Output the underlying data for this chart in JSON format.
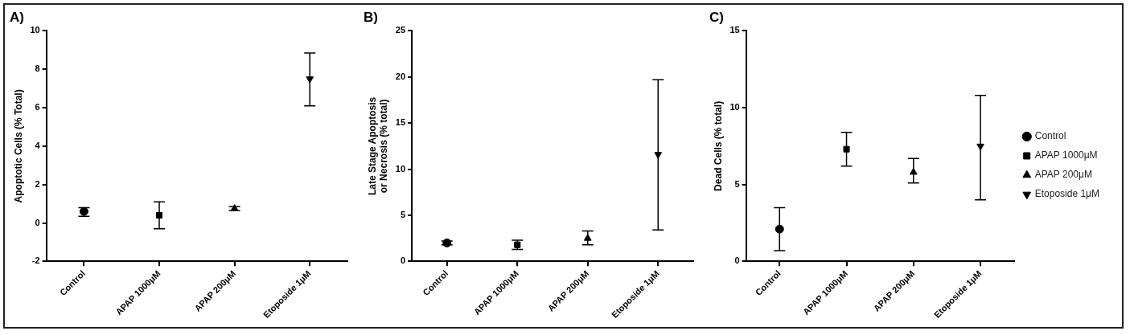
{
  "chart_data": [
    {
      "type": "scatter",
      "title": "A)",
      "ylabel": "Apoptotic Cells (% Total)",
      "categories": [
        "Control",
        "APAP 1000μM",
        "APAP 200μM",
        "Etoposide 1μM"
      ],
      "ylim": [
        -2,
        10
      ],
      "yticks": [
        -2,
        0,
        2,
        4,
        6,
        8,
        10
      ],
      "grid": false,
      "legend": false,
      "series": [
        {
          "color": "#000000",
          "marker": "circle",
          "values": [
            0.6,
            null,
            null,
            null
          ],
          "errors": [
            [
              0.35,
              0.8
            ],
            null,
            null,
            null
          ]
        },
        {
          "color": "#000000",
          "marker": "square",
          "values": [
            null,
            0.4,
            null,
            null
          ],
          "errors": [
            null,
            [
              -0.3,
              1.1
            ],
            null,
            null
          ]
        },
        {
          "color": "#000000",
          "marker": "triangle",
          "values": [
            null,
            null,
            0.75,
            null
          ],
          "errors": [
            null,
            null,
            [
              0.65,
              0.85
            ],
            null
          ]
        },
        {
          "color": "#000000",
          "marker": "triangle-down",
          "values": [
            null,
            null,
            null,
            7.5
          ],
          "errors": [
            null,
            null,
            null,
            [
              6.1,
              8.85
            ]
          ]
        }
      ]
    },
    {
      "type": "scatter",
      "title": "B)",
      "ylabel": "Late Stage Apoptosis\nor Necrosis (% total)",
      "categories": [
        "Control",
        "APAP 1000μM",
        "APAP 200μM",
        "Etoposide 1μM"
      ],
      "ylim": [
        0,
        25
      ],
      "yticks": [
        0,
        5,
        10,
        15,
        20,
        25
      ],
      "grid": false,
      "legend": false,
      "series": [
        {
          "color": "#000000",
          "marker": "circle",
          "values": [
            2.0,
            null,
            null,
            null
          ],
          "errors": [
            [
              1.8,
              2.2
            ],
            null,
            null,
            null
          ]
        },
        {
          "color": "#000000",
          "marker": "square",
          "values": [
            null,
            1.8,
            null,
            null
          ],
          "errors": [
            null,
            [
              1.3,
              2.3
            ],
            null,
            null
          ]
        },
        {
          "color": "#000000",
          "marker": "triangle",
          "values": [
            null,
            null,
            2.5,
            null
          ],
          "errors": [
            null,
            null,
            [
              1.8,
              3.3
            ],
            null
          ]
        },
        {
          "color": "#000000",
          "marker": "triangle-down",
          "values": [
            null,
            null,
            null,
            11.6
          ],
          "errors": [
            null,
            null,
            null,
            [
              3.4,
              19.7
            ]
          ]
        }
      ]
    },
    {
      "type": "scatter",
      "title": "C)",
      "ylabel": "Dead Cells (% total)",
      "categories": [
        "Control",
        "APAP 1000μM",
        "APAP 200μM",
        "Etoposide 1μM"
      ],
      "ylim": [
        0,
        15
      ],
      "yticks": [
        0,
        5,
        10,
        15
      ],
      "grid": false,
      "legend": "right",
      "series": [
        {
          "name": "Control",
          "color": "#000000",
          "marker": "circle",
          "values": [
            2.1,
            null,
            null,
            null
          ],
          "errors": [
            [
              0.7,
              3.5
            ],
            null,
            null,
            null
          ]
        },
        {
          "name": "APAP 1000μM",
          "color": "#000000",
          "marker": "square",
          "values": [
            null,
            7.3,
            null,
            null
          ],
          "errors": [
            null,
            [
              6.2,
              8.4
            ],
            null,
            null
          ]
        },
        {
          "name": "APAP 200μM",
          "color": "#000000",
          "marker": "triangle",
          "values": [
            null,
            null,
            5.8,
            null
          ],
          "errors": [
            null,
            null,
            [
              5.1,
              6.7
            ],
            null
          ]
        },
        {
          "name": "Etoposide 1μM",
          "color": "#000000",
          "marker": "triangle-down",
          "values": [
            null,
            null,
            null,
            7.5
          ],
          "errors": [
            null,
            null,
            null,
            [
              4.0,
              10.8
            ]
          ]
        }
      ]
    }
  ]
}
